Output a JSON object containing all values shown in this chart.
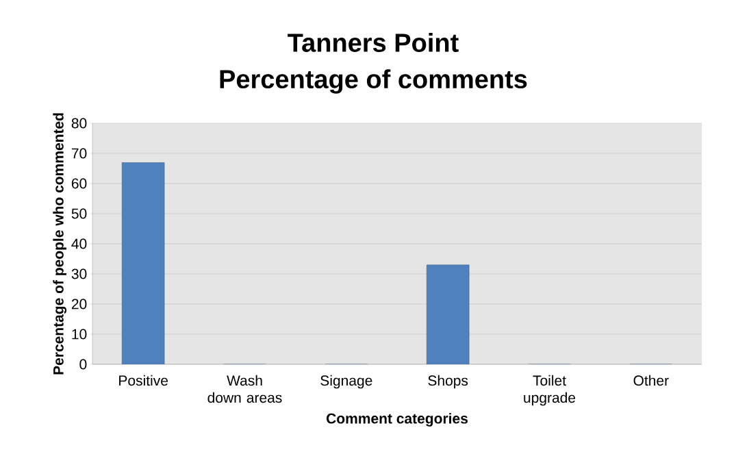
{
  "chart_data": {
    "type": "bar",
    "title": "Tanners Point",
    "subtitle": "Percentage of comments",
    "xlabel": "Comment categories",
    "ylabel": "Percentage of people who commented",
    "categories": [
      "Positive",
      "Wash down areas",
      "Signage",
      "Shops",
      "Toilet upgrade",
      "Other"
    ],
    "values": [
      67,
      0,
      0,
      33,
      0,
      0
    ],
    "color": "#4f81bd",
    "ylim": [
      0,
      80
    ],
    "yticks": [
      0,
      10,
      20,
      30,
      40,
      50,
      60,
      70,
      80
    ],
    "grid": "y"
  }
}
